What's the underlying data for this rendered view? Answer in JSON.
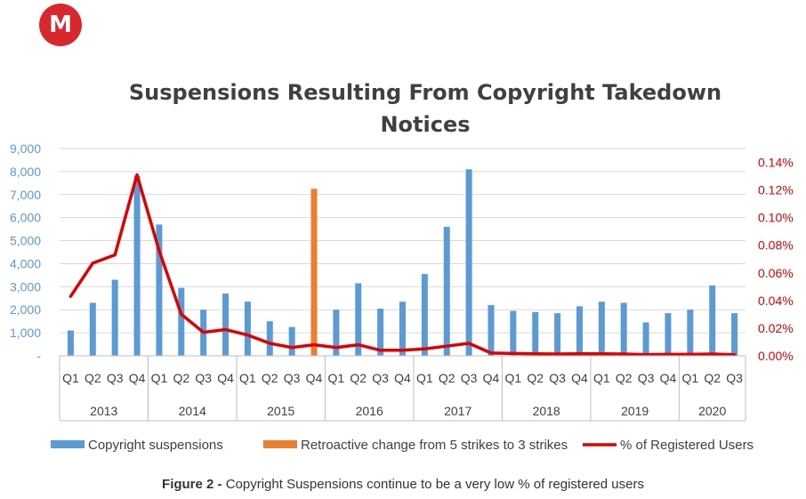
{
  "logo": {
    "letter": "M",
    "color": "#d9272e"
  },
  "caption": {
    "label": "Figure 2 -",
    "text": " Copyright Suspensions continue to be a very low % of registered users"
  },
  "chart_data": {
    "type": "bar",
    "title_line1": "Suspensions Resulting From Copyright Takedown",
    "title_line2": "Notices",
    "quarters": [
      "Q1",
      "Q2",
      "Q3",
      "Q4",
      "Q1",
      "Q2",
      "Q3",
      "Q4",
      "Q1",
      "Q2",
      "Q3",
      "Q4",
      "Q1",
      "Q2",
      "Q3",
      "Q4",
      "Q1",
      "Q2",
      "Q3",
      "Q4",
      "Q1",
      "Q2",
      "Q3",
      "Q4",
      "Q1",
      "Q2",
      "Q3",
      "Q4",
      "Q1",
      "Q2",
      "Q3"
    ],
    "years": [
      {
        "label": "2013",
        "quarters": 4
      },
      {
        "label": "2014",
        "quarters": 4
      },
      {
        "label": "2015",
        "quarters": 4
      },
      {
        "label": "2016",
        "quarters": 4
      },
      {
        "label": "2017",
        "quarters": 4
      },
      {
        "label": "2018",
        "quarters": 4
      },
      {
        "label": "2019",
        "quarters": 4
      },
      {
        "label": "2020",
        "quarters": 3
      }
    ],
    "y_left": {
      "ticks": [
        "-",
        "1,000",
        "2,000",
        "3,000",
        "4,000",
        "5,000",
        "6,000",
        "7,000",
        "8,000",
        "9,000"
      ],
      "lim": [
        0,
        9000
      ],
      "color": "#5b9bd5"
    },
    "y_right": {
      "ticks": [
        "0.00%",
        "0.02%",
        "0.04%",
        "0.06%",
        "0.08%",
        "0.10%",
        "0.12%",
        "0.14%"
      ],
      "lim": [
        0,
        0.15
      ],
      "color": "#e00000"
    },
    "grid": true,
    "legend_position": "bottom",
    "series": [
      {
        "name": "Copyright suspensions",
        "kind": "bar",
        "color": "#5b9bd5",
        "values": [
          1100,
          2300,
          3300,
          7800,
          5700,
          2950,
          2000,
          2700,
          2350,
          1500,
          1250,
          2200,
          2000,
          3150,
          2050,
          2350,
          3550,
          5600,
          8100,
          2200,
          1950,
          1900,
          1850,
          2150,
          2350,
          2300,
          1450,
          1850,
          2000,
          3050,
          1850
        ]
      },
      {
        "name": "Retroactive change from 5 strikes to 3 strikes",
        "kind": "bar",
        "color": "#ed7d31",
        "values": [
          0,
          0,
          0,
          0,
          0,
          0,
          0,
          0,
          0,
          0,
          0,
          7250,
          0,
          0,
          0,
          0,
          0,
          0,
          0,
          0,
          0,
          0,
          0,
          0,
          0,
          0,
          0,
          0,
          0,
          0,
          0
        ]
      },
      {
        "name": "% of Registered Users",
        "kind": "line",
        "axis": "right",
        "color": "#e00000",
        "values": [
          0.043,
          0.067,
          0.073,
          0.131,
          0.076,
          0.03,
          0.017,
          0.019,
          0.015,
          0.009,
          0.006,
          0.008,
          0.006,
          0.008,
          0.004,
          0.004,
          0.005,
          0.007,
          0.009,
          0.002,
          0.0017,
          0.0015,
          0.0013,
          0.0015,
          0.0015,
          0.0013,
          0.0009,
          0.001,
          0.001,
          0.0013,
          0.0008
        ]
      }
    ]
  }
}
